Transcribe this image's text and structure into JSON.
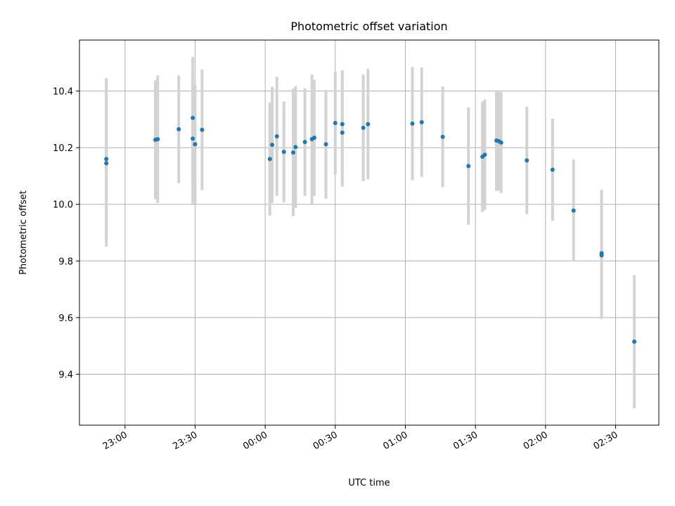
{
  "chart_data": {
    "type": "scatter",
    "title": "Photometric offset variation",
    "xlabel": "UTC time",
    "ylabel": "Photometric offset",
    "x_tick_labels": [
      "23:00",
      "23:30",
      "00:00",
      "00:30",
      "01:00",
      "01:30",
      "02:00",
      "02:30"
    ],
    "x_ticks_minutes": [
      -60,
      -30,
      0,
      30,
      60,
      90,
      120,
      150
    ],
    "y_ticks": [
      9.4,
      9.6,
      9.8,
      10.0,
      10.2,
      10.4
    ],
    "xlim_minutes": [
      -79.5,
      168.5
    ],
    "ylim": [
      9.22,
      10.58
    ],
    "grid": true,
    "colors": {
      "points": "#1f77b4",
      "errorbars": "#d3d3d3",
      "grid": "#b0b0b0"
    },
    "points": [
      {
        "time": "22:52",
        "y": 10.145,
        "err": 0.295
      },
      {
        "time": "22:52",
        "y": 10.16,
        "err": 0.285
      },
      {
        "time": "23:13",
        "y": 10.228,
        "err": 0.21
      },
      {
        "time": "23:14",
        "y": 10.23,
        "err": 0.225
      },
      {
        "time": "23:23",
        "y": 10.265,
        "err": 0.19
      },
      {
        "time": "23:29",
        "y": 10.305,
        "err": 0.215
      },
      {
        "time": "23:29",
        "y": 10.232,
        "err": 0.23
      },
      {
        "time": "23:30",
        "y": 10.212,
        "err": 0.21
      },
      {
        "time": "23:33",
        "y": 10.263,
        "err": 0.213
      },
      {
        "time": "00:02",
        "y": 10.16,
        "err": 0.2
      },
      {
        "time": "00:03",
        "y": 10.21,
        "err": 0.205
      },
      {
        "time": "00:05",
        "y": 10.24,
        "err": 0.21
      },
      {
        "time": "00:08",
        "y": 10.185,
        "err": 0.178
      },
      {
        "time": "00:12",
        "y": 10.183,
        "err": 0.225
      },
      {
        "time": "00:13",
        "y": 10.202,
        "err": 0.215
      },
      {
        "time": "00:17",
        "y": 10.22,
        "err": 0.19
      },
      {
        "time": "00:20",
        "y": 10.23,
        "err": 0.228
      },
      {
        "time": "00:21",
        "y": 10.235,
        "err": 0.205
      },
      {
        "time": "00:26",
        "y": 10.212,
        "err": 0.192
      },
      {
        "time": "00:30",
        "y": 10.287,
        "err": 0.182
      },
      {
        "time": "00:33",
        "y": 10.253,
        "err": 0.19
      },
      {
        "time": "00:33",
        "y": 10.283,
        "err": 0.19
      },
      {
        "time": "00:42",
        "y": 10.27,
        "err": 0.188
      },
      {
        "time": "00:44",
        "y": 10.283,
        "err": 0.195
      },
      {
        "time": "01:03",
        "y": 10.285,
        "err": 0.2
      },
      {
        "time": "01:07",
        "y": 10.29,
        "err": 0.193
      },
      {
        "time": "01:16",
        "y": 10.238,
        "err": 0.178
      },
      {
        "time": "01:27",
        "y": 10.135,
        "err": 0.207
      },
      {
        "time": "01:33",
        "y": 10.168,
        "err": 0.195
      },
      {
        "time": "01:34",
        "y": 10.175,
        "err": 0.195
      },
      {
        "time": "01:39",
        "y": 10.225,
        "err": 0.178
      },
      {
        "time": "01:40",
        "y": 10.223,
        "err": 0.175
      },
      {
        "time": "01:41",
        "y": 10.218,
        "err": 0.178
      },
      {
        "time": "01:52",
        "y": 10.155,
        "err": 0.19
      },
      {
        "time": "02:03",
        "y": 10.122,
        "err": 0.18
      },
      {
        "time": "02:12",
        "y": 9.978,
        "err": 0.18
      },
      {
        "time": "02:24",
        "y": 9.827,
        "err": 0.225
      },
      {
        "time": "02:24",
        "y": 9.82,
        "err": 0.225
      },
      {
        "time": "02:38",
        "y": 9.515,
        "err": 0.235
      }
    ]
  }
}
